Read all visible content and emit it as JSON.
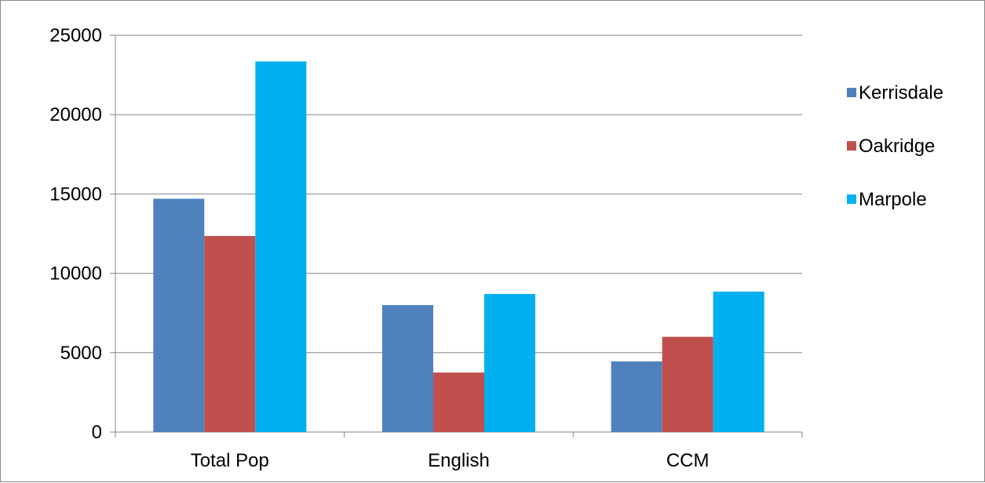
{
  "chart_data": {
    "type": "bar",
    "categories": [
      "Total Pop",
      "English",
      "CCM"
    ],
    "series": [
      {
        "name": "Kerrisdale",
        "values": [
          14700,
          8000,
          4450
        ],
        "color": "#4F81BD"
      },
      {
        "name": "Oakridge",
        "values": [
          12350,
          3750,
          6000
        ],
        "color": "#C0504D"
      },
      {
        "name": "Marpole",
        "values": [
          23350,
          8700,
          8850
        ],
        "color": "#00B0F0"
      }
    ],
    "yticks": [
      "0",
      "5000",
      "10000",
      "15000",
      "20000",
      "25000"
    ],
    "ylim": [
      0,
      25000
    ],
    "grid": true,
    "legend_position": "right"
  }
}
